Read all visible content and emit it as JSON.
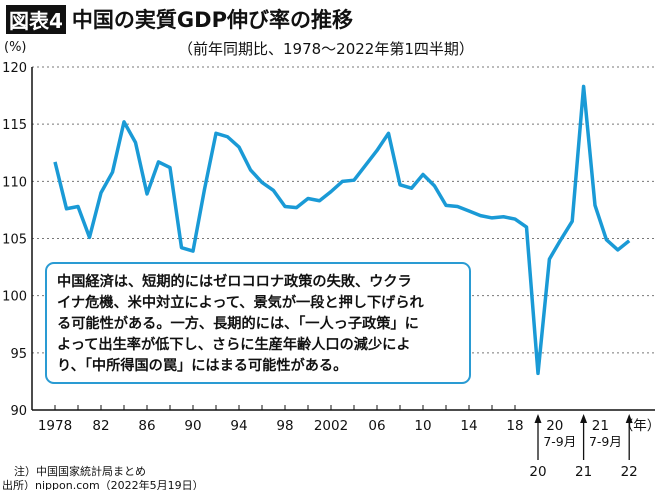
{
  "figure_label": "図表4",
  "chart_data": {
    "type": "line",
    "title": "中国の実質GDP伸び率の推移",
    "subtitle": "（前年同期比、1978〜2022年第1四半期）",
    "ylabel": "(%)",
    "xlabel": "（年）",
    "ylim": [
      90,
      120
    ],
    "yticks": [
      90,
      95,
      100,
      105,
      110,
      115,
      120
    ],
    "grid": true,
    "line_color": "#1a9ad6",
    "xtick_labels": [
      "1978",
      "82",
      "86",
      "90",
      "94",
      "98",
      "2002",
      "06",
      "10",
      "14",
      "18"
    ],
    "quarter_labels_top": [
      "20",
      "21"
    ],
    "quarter_labels_mid": [
      "7-9月",
      "7-9月"
    ],
    "quarter_labels_bottom": [
      "20",
      "21",
      "22"
    ],
    "annual": {
      "x": [
        1978,
        1979,
        1980,
        1981,
        1982,
        1983,
        1984,
        1985,
        1986,
        1987,
        1988,
        1989,
        1990,
        1991,
        1992,
        1993,
        1994,
        1995,
        1996,
        1997,
        1998,
        1999,
        2000,
        2001,
        2002,
        2003,
        2004,
        2005,
        2006,
        2007,
        2008,
        2009,
        2010,
        2011,
        2012,
        2013,
        2014,
        2015,
        2016,
        2017,
        2018,
        2019
      ],
      "values": [
        111.7,
        107.6,
        107.8,
        105.1,
        109.0,
        110.8,
        115.2,
        113.4,
        108.9,
        111.7,
        111.2,
        104.2,
        103.9,
        109.3,
        114.2,
        113.9,
        113.0,
        111.0,
        109.9,
        109.2,
        107.8,
        107.7,
        108.5,
        108.3,
        109.1,
        110.0,
        110.1,
        111.4,
        112.7,
        114.2,
        109.7,
        109.4,
        110.6,
        109.6,
        107.9,
        107.8,
        107.4,
        107.0,
        106.8,
        106.9,
        106.7,
        106.0
      ]
    },
    "quarterly": {
      "x": [
        "2020Q1",
        "2020Q2",
        "2020Q3",
        "2020Q4",
        "2021Q1",
        "2021Q2",
        "2021Q3",
        "2021Q4",
        "2022Q1"
      ],
      "values": [
        93.2,
        103.2,
        104.9,
        106.5,
        118.3,
        107.9,
        104.9,
        104.0,
        104.8
      ]
    }
  },
  "annotation": [
    "中国経済は、短期的にはゼロコロナ政策の失敗、ウクラ",
    "イナ危機、米中対立によって、景気が一段と押し下げられ",
    "る可能性がある。一方、長期的には、「一人っ子政策」に",
    "よって出生率が低下し、さらに生産年齢人口の減少によ",
    "り、「中所得国の罠」にはまる可能性がある。"
  ],
  "notes": {
    "source_note": "注）中国国家統計局まとめ",
    "credit": "出所）nippon.com（2022年5月19日）"
  }
}
